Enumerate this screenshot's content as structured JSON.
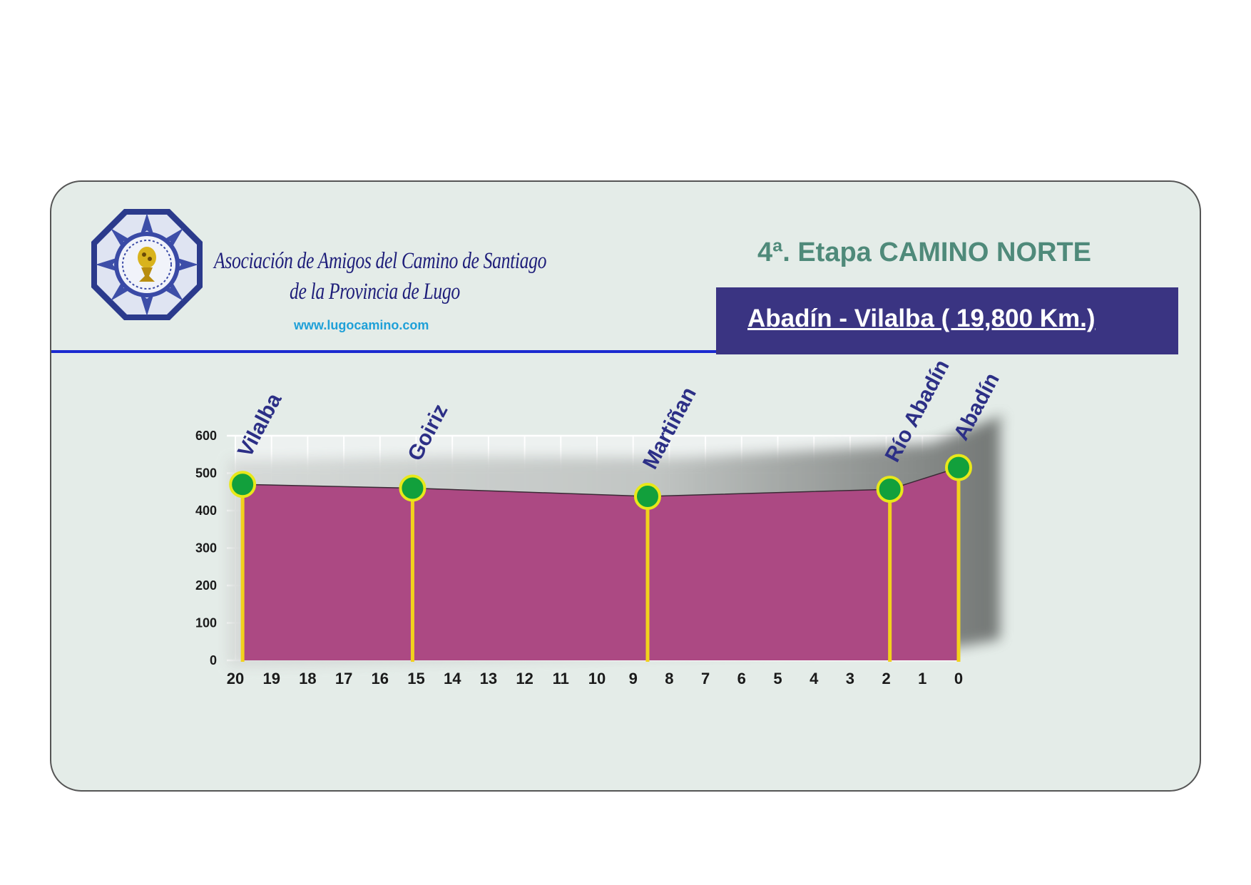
{
  "header": {
    "org_line1": "Asociación de Amigos del Camino de Santiago",
    "org_line2": "de la Provincia de Lugo",
    "website": "www.lugocamino.com",
    "stage_title": "4ª. Etapa CAMINO NORTE",
    "route": "Abadín - Vilalba ( 19,800 Km.)"
  },
  "logo": {
    "icon": "association-seal-icon"
  },
  "colors": {
    "card_bg": "#e4ece8",
    "area_fill": "#ac4983",
    "marker_fill": "#12a03c",
    "marker_ring": "#e8e81a",
    "stem": "#f2d21c",
    "place_label": "#2c2f86",
    "route_box": "#3a3482",
    "stage_title": "#4f8a7a"
  },
  "chart_data": {
    "type": "area",
    "title": "",
    "xlabel": "",
    "ylabel": "",
    "ylim": [
      0,
      600
    ],
    "yticks": [
      0,
      100,
      200,
      300,
      400,
      500,
      600
    ],
    "xticks": [
      20,
      19,
      18,
      17,
      16,
      15,
      14,
      13,
      12,
      11,
      10,
      9,
      8,
      7,
      6,
      5,
      4,
      3,
      2,
      1,
      0
    ],
    "xlim": [
      20,
      0
    ],
    "x_reversed": true,
    "grid": true,
    "profile": [
      {
        "x": 19.8,
        "y": 470
      },
      {
        "x": 15.1,
        "y": 460
      },
      {
        "x": 8.6,
        "y": 438
      },
      {
        "x": 1.9,
        "y": 457
      },
      {
        "x": 0,
        "y": 515
      }
    ],
    "waypoints": [
      {
        "name": "Vilalba",
        "x": 19.8,
        "y": 470
      },
      {
        "name": "Goiriz",
        "x": 15.1,
        "y": 460
      },
      {
        "name": "Martiñan",
        "x": 8.6,
        "y": 438
      },
      {
        "name": "Río Abadín",
        "x": 1.9,
        "y": 457
      },
      {
        "name": "Abadín",
        "x": 0,
        "y": 515
      }
    ]
  }
}
